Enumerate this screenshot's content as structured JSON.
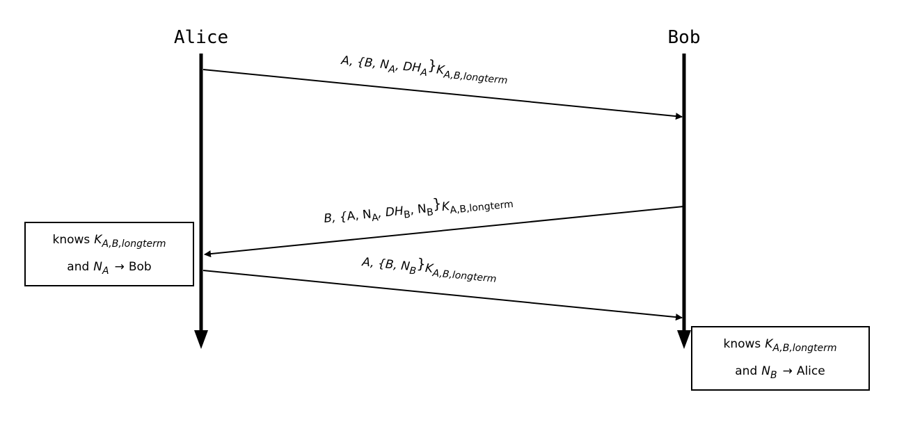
{
  "actors": {
    "alice": "Alice",
    "bob": "Bob"
  },
  "messages": {
    "m1": {
      "lead": "A, {",
      "items": [
        {
          "base": "B, N",
          "sub": "A"
        },
        {
          "base": ", DH",
          "sub": "A"
        }
      ],
      "close": "}",
      "key_base": "K",
      "key_sub": "A,B,longterm"
    },
    "m2": {
      "lead": "B, {",
      "items": [
        {
          "base": "A, N",
          "sub": "A"
        },
        {
          "base": ", DH",
          "sub": "B"
        },
        {
          "base": ", N",
          "sub": "B"
        }
      ],
      "close": "}",
      "key_base": "K",
      "key_sub": "A,B,longterm"
    },
    "m3": {
      "lead": "A, {",
      "items": [
        {
          "base": "B, N",
          "sub": "B"
        }
      ],
      "close": "}",
      "key_base": "K",
      "key_sub": "A,B,longterm"
    }
  },
  "notes": {
    "alice": {
      "line1_text": "knows",
      "line1_key": "K",
      "line1_sub": "A,B,longterm",
      "line2_and": "and",
      "line2_var": "N",
      "line2_sub": "A",
      "line2_arrow": "→",
      "line2_target": "Bob"
    },
    "bob": {
      "line1_text": "knows",
      "line1_key": "K",
      "line1_sub": "A,B,longterm",
      "line2_and": "and",
      "line2_var": "N",
      "line2_sub": "B",
      "line2_arrow": "→",
      "line2_target": "Alice"
    }
  }
}
